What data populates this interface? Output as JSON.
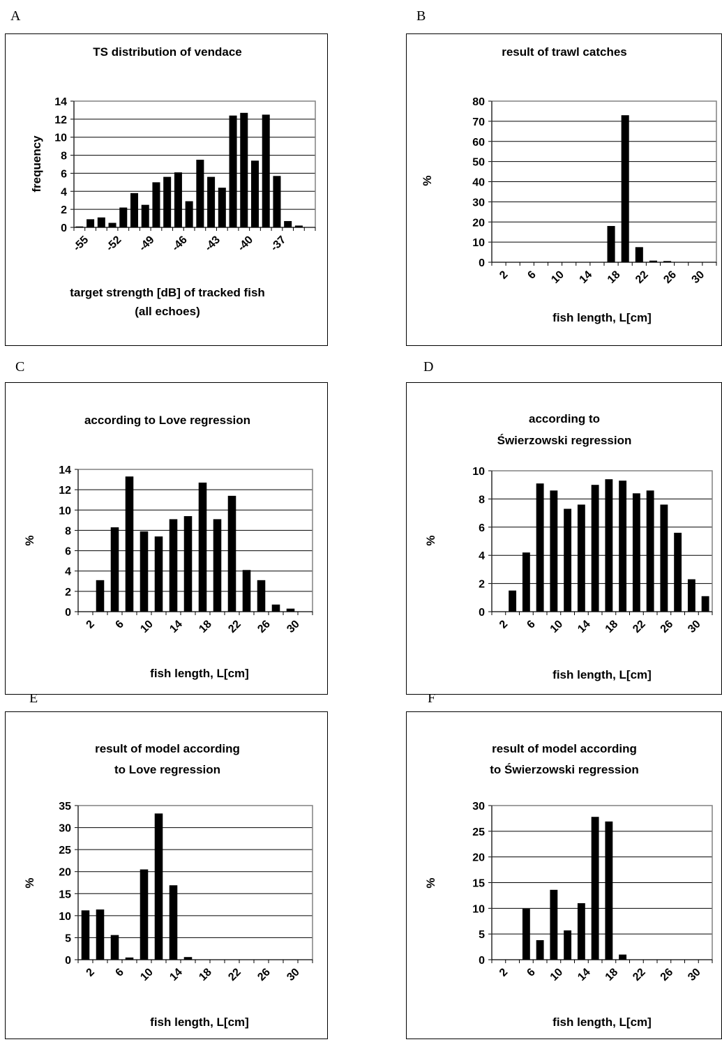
{
  "chart_data": [
    {
      "panel": "A",
      "type": "bar",
      "title": "TS distribution of vendace",
      "xlabel": "target strength [dB] of tracked fish (all echoes)",
      "ylabel": "frequency",
      "ylim": [
        0,
        14
      ],
      "yticks": [
        "0",
        "2",
        "4",
        "6",
        "8",
        "10",
        "12",
        "14"
      ],
      "categories": [
        "-55",
        "-54",
        "-53",
        "-52",
        "-51",
        "-50",
        "-49",
        "-48",
        "-47",
        "-46",
        "-45",
        "-44",
        "-43",
        "-42",
        "-41",
        "-40",
        "-39",
        "-38",
        "-37",
        "-36",
        "-35",
        "-34"
      ],
      "xtick_labels": [
        "-55",
        "",
        "",
        "-52",
        "",
        "",
        "-49",
        "",
        "",
        "-46",
        "",
        "",
        "-43",
        "",
        "",
        "-40",
        "",
        "",
        "-37",
        "",
        "",
        ""
      ],
      "values": [
        0.1,
        0.9,
        1.1,
        0.5,
        2.2,
        3.8,
        2.5,
        5.0,
        5.6,
        6.1,
        2.9,
        7.5,
        5.6,
        4.4,
        12.4,
        12.7,
        7.4,
        12.5,
        5.7,
        0.7,
        0.2,
        null
      ],
      "grid": true
    },
    {
      "panel": "B",
      "type": "bar",
      "title": "result of trawl catches",
      "xlabel": "fish length, L[cm]",
      "ylabel": "%",
      "ylim": [
        0,
        80
      ],
      "yticks": [
        "0",
        "10",
        "20",
        "30",
        "40",
        "50",
        "60",
        "70",
        "80"
      ],
      "categories": [
        "2",
        "4",
        "6",
        "8",
        "10",
        "12",
        "14",
        "16",
        "18",
        "20",
        "22",
        "24",
        "26",
        "28",
        "30",
        "32"
      ],
      "xtick_labels": [
        "2",
        "",
        "6",
        "",
        "10",
        "",
        "14",
        "",
        "18",
        "",
        "22",
        "",
        "26",
        "",
        "30",
        ""
      ],
      "values": [
        0,
        0,
        0,
        0,
        0,
        0,
        0,
        0,
        18,
        73,
        7.5,
        0.8,
        0.6,
        0,
        0,
        0
      ],
      "grid": true
    },
    {
      "panel": "C",
      "type": "bar",
      "title": "according to Love regression",
      "xlabel": "fish length, L[cm]",
      "ylabel": "%",
      "ylim": [
        0,
        14
      ],
      "yticks": [
        "0",
        "2",
        "4",
        "6",
        "8",
        "10",
        "12",
        "14"
      ],
      "categories": [
        "2",
        "4",
        "6",
        "8",
        "10",
        "12",
        "14",
        "16",
        "18",
        "20",
        "22",
        "24",
        "26",
        "28",
        "30",
        "32"
      ],
      "xtick_labels": [
        "2",
        "",
        "6",
        "",
        "10",
        "",
        "14",
        "",
        "18",
        "",
        "22",
        "",
        "26",
        "",
        "30",
        ""
      ],
      "values": [
        0,
        3.1,
        8.3,
        13.3,
        7.9,
        7.4,
        9.1,
        9.4,
        12.7,
        9.1,
        11.4,
        4.1,
        3.1,
        0.7,
        0.3,
        0
      ],
      "grid": true
    },
    {
      "panel": "D",
      "type": "bar",
      "title": "according to Świerzowski regression",
      "xlabel": "fish length, L[cm]",
      "ylabel": "%",
      "ylim": [
        0,
        10
      ],
      "yticks": [
        "0",
        "2",
        "4",
        "6",
        "8",
        "10"
      ],
      "categories": [
        "2",
        "4",
        "6",
        "8",
        "10",
        "12",
        "14",
        "16",
        "18",
        "20",
        "22",
        "24",
        "26",
        "28",
        "30",
        "32"
      ],
      "xtick_labels": [
        "2",
        "",
        "6",
        "",
        "10",
        "",
        "14",
        "",
        "18",
        "",
        "22",
        "",
        "26",
        "",
        "30",
        ""
      ],
      "values": [
        0,
        1.5,
        4.2,
        9.1,
        8.6,
        7.3,
        7.6,
        9.0,
        9.4,
        9.3,
        8.4,
        8.6,
        7.6,
        5.6,
        2.3,
        1.1
      ],
      "grid": true
    },
    {
      "panel": "E",
      "type": "bar",
      "title": "result of model according to Love regression",
      "xlabel": "fish length, L[cm]",
      "ylabel": "%",
      "ylim": [
        0,
        35
      ],
      "yticks": [
        "0",
        "5",
        "10",
        "15",
        "20",
        "25",
        "30",
        "35"
      ],
      "categories": [
        "2",
        "4",
        "6",
        "8",
        "10",
        "12",
        "14",
        "16",
        "18",
        "20",
        "22",
        "24",
        "26",
        "28",
        "30",
        "32"
      ],
      "xtick_labels": [
        "2",
        "",
        "6",
        "",
        "10",
        "",
        "14",
        "",
        "18",
        "",
        "22",
        "",
        "26",
        "",
        "30",
        ""
      ],
      "values": [
        11.2,
        11.4,
        5.6,
        0.5,
        20.5,
        33.2,
        16.9,
        0.6,
        0,
        0,
        0,
        0,
        0,
        0,
        0,
        0
      ],
      "grid": true
    },
    {
      "panel": "F",
      "type": "bar",
      "title": "result of model according to Świerzowski regression",
      "xlabel": "fish length, L[cm]",
      "ylabel": "%",
      "ylim": [
        0,
        30
      ],
      "yticks": [
        "0",
        "5",
        "10",
        "15",
        "20",
        "25",
        "30"
      ],
      "categories": [
        "2",
        "4",
        "6",
        "8",
        "10",
        "12",
        "14",
        "16",
        "18",
        "20",
        "22",
        "24",
        "26",
        "28",
        "30",
        "32"
      ],
      "xtick_labels": [
        "2",
        "",
        "6",
        "",
        "10",
        "",
        "14",
        "",
        "18",
        "",
        "22",
        "",
        "26",
        "",
        "30",
        ""
      ],
      "values": [
        0,
        0,
        9.9,
        3.8,
        13.6,
        5.7,
        11.0,
        27.8,
        26.9,
        1.0,
        0,
        0,
        0,
        0,
        0,
        0
      ],
      "grid": true
    }
  ]
}
